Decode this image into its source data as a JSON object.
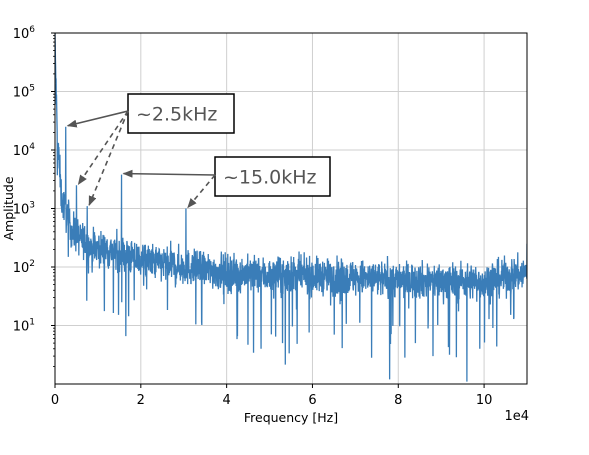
{
  "chart_data": {
    "type": "line",
    "xlabel": "Frequency [Hz]",
    "ylabel": "Amplitude",
    "x_scale_note": "1e4",
    "xlim": [
      0,
      110000
    ],
    "ylim": [
      1,
      1000000
    ],
    "yscale": "log",
    "grid": true,
    "x_ticks": [
      0,
      20000,
      40000,
      60000,
      80000,
      100000
    ],
    "x_tick_labels": [
      "0",
      "2",
      "4",
      "6",
      "8",
      "10"
    ],
    "y_ticks": [
      10,
      100,
      1000,
      10000,
      100000,
      1000000
    ],
    "y_tick_bases": [
      "10",
      "10",
      "10",
      "10",
      "10",
      "10"
    ],
    "y_tick_exps": [
      "1",
      "2",
      "3",
      "4",
      "5",
      "6"
    ],
    "series": [
      {
        "color": "#3a7db8",
        "noise_floor_points": [
          {
            "x": 0,
            "y": 700000
          },
          {
            "x": 500,
            "y": 20000
          },
          {
            "x": 1500,
            "y": 1500
          },
          {
            "x": 4000,
            "y": 400
          },
          {
            "x": 8000,
            "y": 230
          },
          {
            "x": 14000,
            "y": 180
          },
          {
            "x": 20000,
            "y": 130
          },
          {
            "x": 30000,
            "y": 100
          },
          {
            "x": 40000,
            "y": 80
          },
          {
            "x": 50000,
            "y": 72
          },
          {
            "x": 60000,
            "y": 70
          },
          {
            "x": 70000,
            "y": 65
          },
          {
            "x": 80000,
            "y": 60
          },
          {
            "x": 90000,
            "y": 58
          },
          {
            "x": 100000,
            "y": 56
          },
          {
            "x": 110000,
            "y": 80
          }
        ],
        "peaks": [
          {
            "x": 2500,
            "y": 25000
          },
          {
            "x": 5000,
            "y": 2500
          },
          {
            "x": 7500,
            "y": 1100
          },
          {
            "x": 15500,
            "y": 3800
          },
          {
            "x": 30500,
            "y": 1000
          },
          {
            "x": 110000,
            "y": 250
          }
        ],
        "dips": [
          {
            "x": 78000,
            "y": 1.2
          },
          {
            "x": 96000,
            "y": 1.1
          },
          {
            "x": 48000,
            "y": 4
          },
          {
            "x": 53000,
            "y": 5
          },
          {
            "x": 84000,
            "y": 5
          },
          {
            "x": 99000,
            "y": 4
          }
        ]
      }
    ],
    "annotations": [
      {
        "text": "~2.5kHz",
        "targets": [
          {
            "x": 2500,
            "y": 25000,
            "style": "solid"
          },
          {
            "x": 5000,
            "y": 2500,
            "style": "dashed"
          },
          {
            "x": 7500,
            "y": 1100,
            "style": "dashed"
          }
        ]
      },
      {
        "text": "~15.0kHz",
        "targets": [
          {
            "x": 15500,
            "y": 3800,
            "style": "solid"
          },
          {
            "x": 30500,
            "y": 1000,
            "style": "dashed"
          }
        ]
      }
    ]
  }
}
